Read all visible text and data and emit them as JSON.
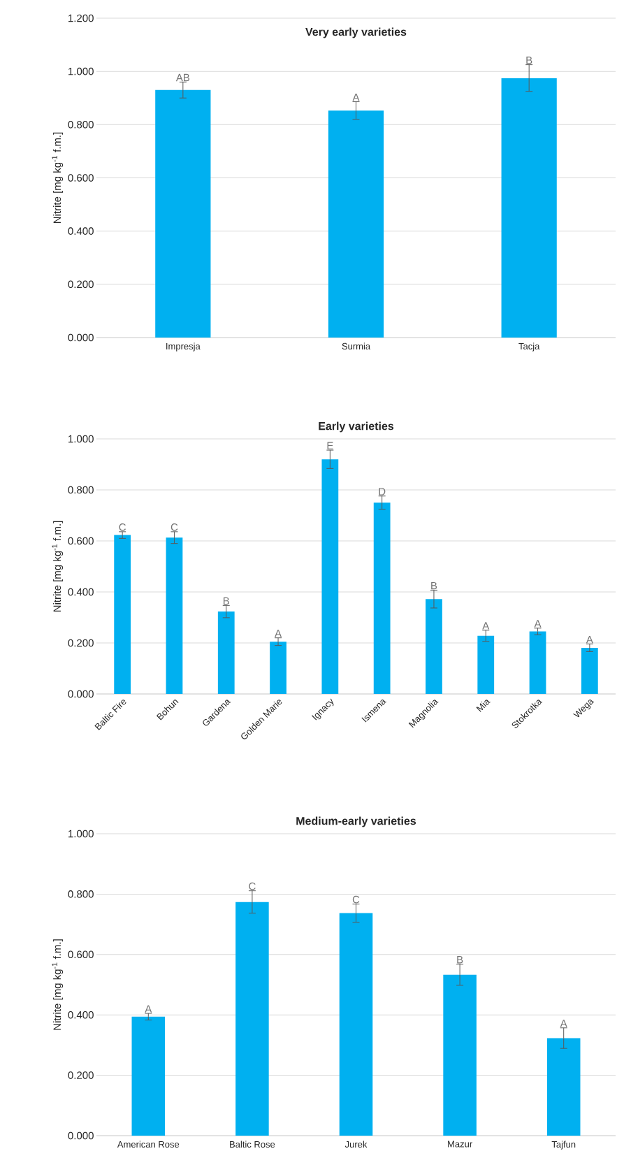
{
  "chart_data": [
    {
      "type": "bar",
      "title": "Very early varieties",
      "ylabel": "Nitrite [mg kg$^{-1}$ f.m.]",
      "categories": [
        "Impresja",
        "Surmia",
        "Tacja"
      ],
      "values": [
        0.93,
        0.853,
        0.975
      ],
      "errors": [
        0.03,
        0.033,
        0.05
      ],
      "color": "#00b0f0",
      "ylim": [
        0,
        1.2
      ],
      "yticks": [
        {
          "value": 0,
          "label": "0.000"
        },
        {
          "value": 0.2,
          "label": "0.200"
        },
        {
          "value": 0.4,
          "label": "0.400"
        },
        {
          "value": 0.6,
          "label": "0.600"
        },
        {
          "value": 0.8,
          "label": "0.800"
        },
        {
          "value": 1.0,
          "label": "1.000"
        },
        {
          "value": 1.2,
          "label": "1.200"
        }
      ],
      "grid": "y",
      "annotations": [
        {
          "text": "AB",
          "x": "Impresja",
          "y": 0.96
        },
        {
          "text": "A",
          "x": "Surmia",
          "y": 0.886
        },
        {
          "text": "B",
          "x": "Tacja",
          "y": 1.025
        }
      ]
    },
    {
      "type": "bar",
      "title": "Early varieties",
      "ylabel": "Nitrite [mg kg$^{-1}$ f.m.]",
      "categories": [
        "Baltic Fire",
        "Bohun",
        "Gardena",
        "Golden Marie",
        "Ignacy",
        "Ismena",
        "Magnolia",
        "Mia",
        "Stokrotka",
        "Wega"
      ],
      "values": [
        0.623,
        0.613,
        0.323,
        0.205,
        0.92,
        0.75,
        0.372,
        0.228,
        0.245,
        0.181
      ],
      "errors": [
        0.013,
        0.023,
        0.024,
        0.015,
        0.036,
        0.026,
        0.035,
        0.022,
        0.013,
        0.015
      ],
      "color": "#00b0f0",
      "ylim": [
        0,
        1.0
      ],
      "yticks": [
        {
          "value": 0,
          "label": "0.000"
        },
        {
          "value": 0.2,
          "label": "0.200"
        },
        {
          "value": 0.4,
          "label": "0.400"
        },
        {
          "value": 0.6,
          "label": "0.600"
        },
        {
          "value": 0.8,
          "label": "0.800"
        },
        {
          "value": 1.0,
          "label": "1.000"
        }
      ],
      "grid": "y",
      "annotations": [
        {
          "text": "C",
          "x": "Baltic Fire",
          "y": 0.636
        },
        {
          "text": "C",
          "x": "Bohun",
          "y": 0.636
        },
        {
          "text": "B",
          "x": "Gardena",
          "y": 0.347
        },
        {
          "text": "A",
          "x": "Golden Marie",
          "y": 0.22
        },
        {
          "text": "E",
          "x": "Ignacy",
          "y": 0.956
        },
        {
          "text": "D",
          "x": "Ismena",
          "y": 0.776
        },
        {
          "text": "B",
          "x": "Magnolia",
          "y": 0.407
        },
        {
          "text": "A",
          "x": "Mia",
          "y": 0.25
        },
        {
          "text": "A",
          "x": "Stokrotka",
          "y": 0.258
        },
        {
          "text": "A",
          "x": "Wega",
          "y": 0.196
        }
      ]
    },
    {
      "type": "bar",
      "title": "Medium-early varieties",
      "ylabel": "Nitrite [mg kg$^{-1}$ f.m.]",
      "categories": [
        "American Rose",
        "Baltic Rose",
        "Jurek",
        "Mazur",
        "Tajfun"
      ],
      "values": [
        0.394,
        0.774,
        0.737,
        0.533,
        0.323
      ],
      "errors": [
        0.011,
        0.037,
        0.03,
        0.035,
        0.034
      ],
      "color": "#00b0f0",
      "ylim": [
        0,
        1.0
      ],
      "yticks": [
        {
          "value": 0,
          "label": "0.000"
        },
        {
          "value": 0.2,
          "label": "0.200"
        },
        {
          "value": 0.4,
          "label": "0.400"
        },
        {
          "value": 0.6,
          "label": "0.600"
        },
        {
          "value": 0.8,
          "label": "0.800"
        },
        {
          "value": 1.0,
          "label": "1.000"
        }
      ],
      "grid": "y",
      "annotations": [
        {
          "text": "A",
          "x": "American Rose",
          "y": 0.405
        },
        {
          "text": "C",
          "x": "Baltic Rose",
          "y": 0.811
        },
        {
          "text": "C",
          "x": "Jurek",
          "y": 0.767
        },
        {
          "text": "B",
          "x": "Mazur",
          "y": 0.568
        },
        {
          "text": "A",
          "x": "Tajfun",
          "y": 0.357
        }
      ]
    }
  ]
}
